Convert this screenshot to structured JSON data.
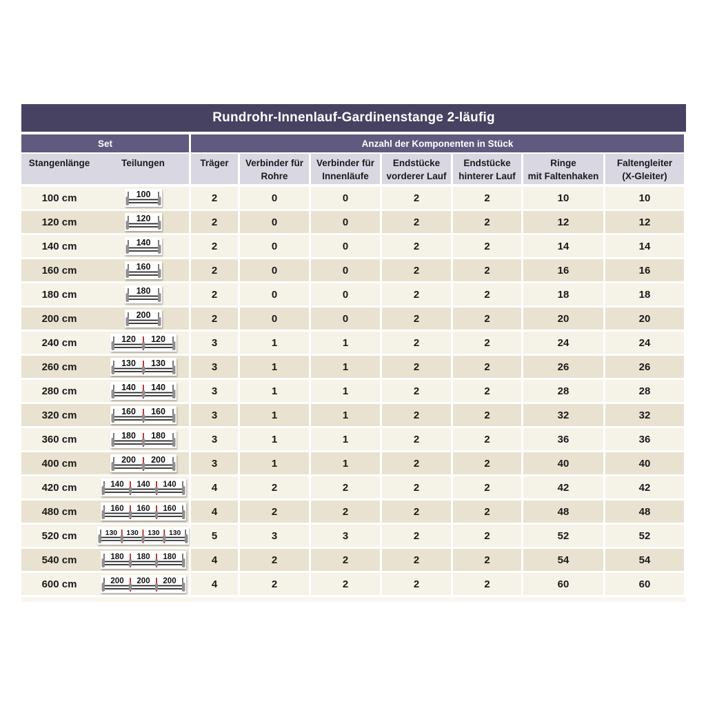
{
  "title": "Rundrohr-Innenlauf-Gardinenstange 2-läufig",
  "group_headers": {
    "set": "Set",
    "components": "Anzahl der Komponenten in Stück"
  },
  "columns": [
    {
      "line1": "Stangenlänge",
      "line2": ""
    },
    {
      "line1": "Teilungen",
      "line2": ""
    },
    {
      "line1": "Träger",
      "line2": ""
    },
    {
      "line1": "Verbinder für",
      "line2": "Rohre"
    },
    {
      "line1": "Verbinder für",
      "line2": "Innenläufe"
    },
    {
      "line1": "Endstücke",
      "line2": "vorderer Lauf"
    },
    {
      "line1": "Endstücke",
      "line2": "hinterer Lauf"
    },
    {
      "line1": "Ringe",
      "line2": "mit Faltenhaken"
    },
    {
      "line1": "Faltengleiter",
      "line2": "(X-Gleiter)"
    }
  ],
  "column_keys": [
    "traeger",
    "verbinder-rohre",
    "verbinder-innenlaeufe",
    "endstuecke-vorderer-lauf",
    "endstuecke-hinterer-lauf",
    "ringe-mit-faltenhaken",
    "faltengleiter"
  ],
  "rows": [
    {
      "length": "100 cm",
      "segments": [
        100
      ],
      "values": [
        "2",
        "0",
        "0",
        "2",
        "2",
        "10",
        "10"
      ]
    },
    {
      "length": "120 cm",
      "segments": [
        120
      ],
      "values": [
        "2",
        "0",
        "0",
        "2",
        "2",
        "12",
        "12"
      ]
    },
    {
      "length": "140 cm",
      "segments": [
        140
      ],
      "values": [
        "2",
        "0",
        "0",
        "2",
        "2",
        "14",
        "14"
      ]
    },
    {
      "length": "160 cm",
      "segments": [
        160
      ],
      "values": [
        "2",
        "0",
        "0",
        "2",
        "2",
        "16",
        "16"
      ]
    },
    {
      "length": "180 cm",
      "segments": [
        180
      ],
      "values": [
        "2",
        "0",
        "0",
        "2",
        "2",
        "18",
        "18"
      ]
    },
    {
      "length": "200 cm",
      "segments": [
        200
      ],
      "values": [
        "2",
        "0",
        "0",
        "2",
        "2",
        "20",
        "20"
      ]
    },
    {
      "length": "240 cm",
      "segments": [
        120,
        120
      ],
      "values": [
        "3",
        "1",
        "1",
        "2",
        "2",
        "24",
        "24"
      ]
    },
    {
      "length": "260 cm",
      "segments": [
        130,
        130
      ],
      "values": [
        "3",
        "1",
        "1",
        "2",
        "2",
        "26",
        "26"
      ]
    },
    {
      "length": "280 cm",
      "segments": [
        140,
        140
      ],
      "values": [
        "3",
        "1",
        "1",
        "2",
        "2",
        "28",
        "28"
      ]
    },
    {
      "length": "320 cm",
      "segments": [
        160,
        160
      ],
      "values": [
        "3",
        "1",
        "1",
        "2",
        "2",
        "32",
        "32"
      ]
    },
    {
      "length": "360 cm",
      "segments": [
        180,
        180
      ],
      "values": [
        "3",
        "1",
        "1",
        "2",
        "2",
        "36",
        "36"
      ]
    },
    {
      "length": "400 cm",
      "segments": [
        200,
        200
      ],
      "values": [
        "3",
        "1",
        "1",
        "2",
        "2",
        "40",
        "40"
      ]
    },
    {
      "length": "420 cm",
      "segments": [
        140,
        140,
        140
      ],
      "values": [
        "4",
        "2",
        "2",
        "2",
        "2",
        "42",
        "42"
      ]
    },
    {
      "length": "480 cm",
      "segments": [
        160,
        160,
        160
      ],
      "values": [
        "4",
        "2",
        "2",
        "2",
        "2",
        "48",
        "48"
      ]
    },
    {
      "length": "520 cm",
      "segments": [
        130,
        130,
        130,
        130
      ],
      "values": [
        "5",
        "3",
        "3",
        "2",
        "2",
        "52",
        "52"
      ]
    },
    {
      "length": "540 cm",
      "segments": [
        180,
        180,
        180
      ],
      "values": [
        "4",
        "2",
        "2",
        "2",
        "2",
        "54",
        "54"
      ]
    },
    {
      "length": "600 cm",
      "segments": [
        200,
        200,
        200
      ],
      "values": [
        "4",
        "2",
        "2",
        "2",
        "2",
        "60",
        "60"
      ]
    }
  ],
  "colors": {
    "title_bg": "#474262",
    "group_bg": "#5f5a7e",
    "header_bg": "#d9d7e2",
    "row_light": "#f5f2e7",
    "row_dark": "#e9e2d0",
    "text": "#1a1a1a",
    "divider_red": "#c6281c",
    "rod_gray": "#8f8f8f"
  }
}
